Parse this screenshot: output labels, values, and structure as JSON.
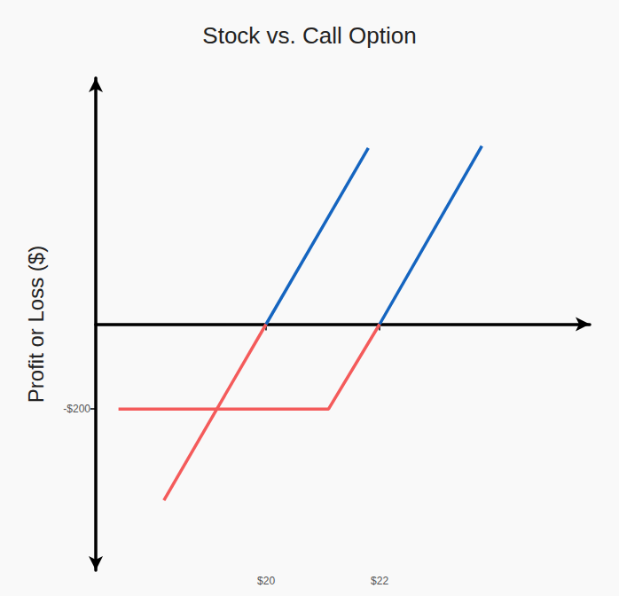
{
  "chart_data": {
    "type": "line",
    "title": "Stock vs. Call Option",
    "y_label": "Profit or Loss ($)",
    "xlim": [
      17,
      25.7
    ],
    "xticks": [
      {
        "value": 20,
        "label": "$20"
      },
      {
        "value": 22,
        "label": "$22"
      }
    ],
    "ylim": [
      -580,
      580
    ],
    "yticks": [
      {
        "value": -200,
        "label": "-$200"
      }
    ],
    "grid": false,
    "series": [
      {
        "color": "#f45b5b",
        "x": [
          18.2,
          20
        ],
        "values": [
          -415,
          0
        ]
      },
      {
        "color": "#1565c0",
        "x": [
          20,
          21.8
        ],
        "values": [
          0,
          415
        ]
      },
      {
        "color": "#f45b5b",
        "x": [
          17.4,
          21.1,
          22
        ],
        "values": [
          -200,
          -200,
          0
        ]
      },
      {
        "color": "#1565c0",
        "x": [
          22,
          23.8
        ],
        "values": [
          0,
          420
        ]
      }
    ]
  }
}
